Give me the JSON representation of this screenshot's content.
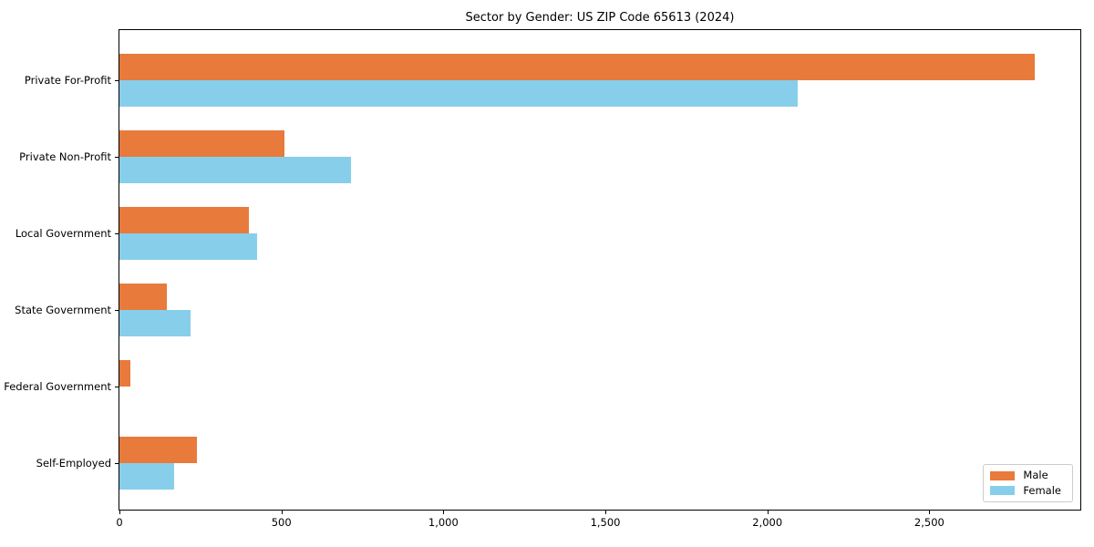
{
  "chart_data": {
    "type": "bar",
    "orientation": "horizontal",
    "title": "Sector by Gender: US ZIP Code 65613 (2024)",
    "categories": [
      "Private For-Profit",
      "Private Non-Profit",
      "Local Government",
      "State Government",
      "Federal Government",
      "Self-Employed"
    ],
    "series": [
      {
        "name": "Male",
        "color": "#e87a3c",
        "values": [
          2825,
          510,
          400,
          145,
          35,
          240
        ]
      },
      {
        "name": "Female",
        "color": "#87ceeb",
        "values": [
          2095,
          715,
          425,
          220,
          0,
          170
        ]
      }
    ],
    "xlabel": "",
    "ylabel": "",
    "xlim": [
      0,
      2966
    ],
    "xticks": [
      0,
      500,
      1000,
      1500,
      2000,
      2500
    ],
    "xtick_labels": [
      "0",
      "500",
      "1,000",
      "1,500",
      "2,000",
      "2,500"
    ],
    "grid": false,
    "legend_position": "lower right",
    "background_color": "#ffffff",
    "spine_color": "#000000"
  }
}
